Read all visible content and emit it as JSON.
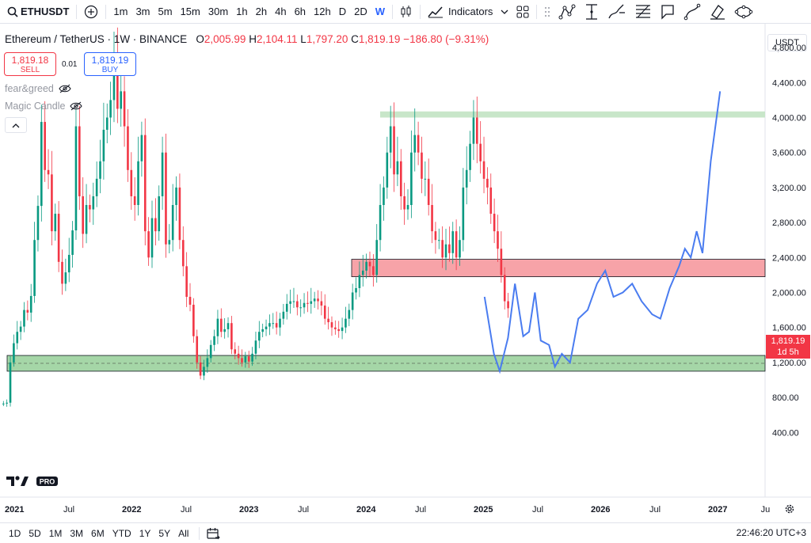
{
  "toolbar": {
    "symbol": "ETHUSDT",
    "intervals": [
      "1m",
      "3m",
      "5m",
      "15m",
      "30m",
      "1h",
      "2h",
      "4h",
      "6h",
      "12h",
      "D",
      "2D",
      "W"
    ],
    "active_interval": "W",
    "indicators_label": "Indicators"
  },
  "legend": {
    "title": "Ethereum / TetherUS · 1W · BINANCE",
    "o_label": "O",
    "o": "2,005.99",
    "h_label": "H",
    "h": "2,104.11",
    "l_label": "L",
    "l": "1,797.20",
    "c_label": "C",
    "c": "1,819.19",
    "change": "−186.80 (−9.31%)"
  },
  "quote": {
    "sell_price": "1,819.18",
    "sell_label": "SELL",
    "spread": "0.01",
    "buy_price": "1,819.19",
    "buy_label": "BUY"
  },
  "indicators": [
    {
      "name": "fear&greed",
      "icon": "eye-off-icon"
    },
    {
      "name": "Magic Candle",
      "icon": "eye-off-icon"
    }
  ],
  "price_axis": {
    "currency": "USDT",
    "ticks": [
      "4,800.00",
      "4,400.00",
      "4,000.00",
      "3,600.00",
      "3,200.00",
      "2,800.00",
      "2,400.00",
      "2,000.00",
      "1,600.00",
      "1,200.00",
      "800.00",
      "400.00"
    ],
    "last_price": "1,819.19",
    "countdown": "1d 5h"
  },
  "time_axis": [
    "2021",
    "Jul",
    "2022",
    "Jul",
    "2023",
    "Jul",
    "2024",
    "Jul",
    "2025",
    "Jul",
    "2026",
    "Jul",
    "2027",
    "Ju"
  ],
  "ranges": [
    "1D",
    "5D",
    "1M",
    "3M",
    "6M",
    "YTD",
    "1Y",
    "5Y",
    "All"
  ],
  "clock": "22:46:20 UTC+3",
  "colors": {
    "up": "#089981",
    "down": "#f23645",
    "projection": "#4a7cf0",
    "support_zone": "#a5d6a7",
    "resistance_zone": "#f7a3a8",
    "top_zone": "#c8e6c9"
  },
  "chart_data": {
    "type": "candlestick",
    "ylim": [
      200,
      5000
    ],
    "zones": [
      {
        "label": "",
        "from": 4000,
        "to": 4070,
        "color": "#c8e6c9"
      },
      {
        "label": "",
        "from": 2180,
        "to": 2380,
        "color": "#f7a3a8"
      },
      {
        "label": "",
        "from": 1100,
        "to": 1280,
        "color": "#a5d6a7"
      }
    ],
    "candles_close": [
      730,
      740,
      1200,
      1420,
      1550,
      1610,
      1800,
      1770,
      1960,
      2600,
      2990,
      3950,
      3400,
      3350,
      2700,
      2900,
      2350,
      2100,
      2230,
      2430,
      2710,
      3900,
      3100,
      2670,
      3000,
      2950,
      3100,
      3300,
      3500,
      3860,
      4000,
      4200,
      4700,
      4100,
      4300,
      3900,
      3400,
      3100,
      3000,
      3500,
      3800,
      2700,
      2400,
      2850,
      2700,
      3100,
      3600,
      2550,
      2600,
      3000,
      3200,
      2600,
      2300,
      1950,
      1860,
      1500,
      1200,
      1050,
      1150,
      1250,
      1400,
      1500,
      1700,
      1550,
      1580,
      1650,
      1350,
      1300,
      1250,
      1200,
      1270,
      1210,
      1300,
      1450,
      1550,
      1580,
      1610,
      1650,
      1650,
      1600,
      1700,
      1780,
      1870,
      1900,
      1900,
      1830,
      1830,
      1880,
      1870,
      1900,
      1930,
      1900,
      1850,
      1700,
      1660,
      1600,
      1580,
      1560,
      1600,
      1700,
      1800,
      2000,
      2050,
      2200,
      2250,
      2350,
      2300,
      2200,
      2600,
      3000,
      3200,
      3600,
      3900,
      3350,
      3500,
      3100,
      2950,
      3000,
      3600,
      3800,
      3600,
      3300,
      3300,
      3000,
      2700,
      2600,
      2600,
      2400,
      2550,
      2450,
      2700,
      2400,
      2600,
      3200,
      3400,
      3700,
      4000,
      3700,
      3500,
      3300,
      3200,
      2900,
      2700,
      2500,
      2200,
      1900,
      1820
    ],
    "projection": [
      [
        2025.12,
        1950
      ],
      [
        2025.2,
        1300
      ],
      [
        2025.25,
        1100
      ],
      [
        2025.32,
        1480
      ],
      [
        2025.38,
        2100
      ],
      [
        2025.45,
        1500
      ],
      [
        2025.5,
        1550
      ],
      [
        2025.55,
        2000
      ],
      [
        2025.6,
        1450
      ],
      [
        2025.67,
        1400
      ],
      [
        2025.72,
        1150
      ],
      [
        2025.78,
        1300
      ],
      [
        2025.85,
        1200
      ],
      [
        2025.92,
        1700
      ],
      [
        2026.0,
        1800
      ],
      [
        2026.08,
        2100
      ],
      [
        2026.15,
        2250
      ],
      [
        2026.22,
        1950
      ],
      [
        2026.3,
        2000
      ],
      [
        2026.38,
        2100
      ],
      [
        2026.46,
        1900
      ],
      [
        2026.55,
        1750
      ],
      [
        2026.62,
        1700
      ],
      [
        2026.7,
        2050
      ],
      [
        2026.78,
        2300
      ],
      [
        2026.83,
        2500
      ],
      [
        2026.88,
        2400
      ],
      [
        2026.93,
        2700
      ],
      [
        2026.98,
        2450
      ],
      [
        2027.05,
        3500
      ],
      [
        2027.13,
        4300
      ]
    ]
  }
}
